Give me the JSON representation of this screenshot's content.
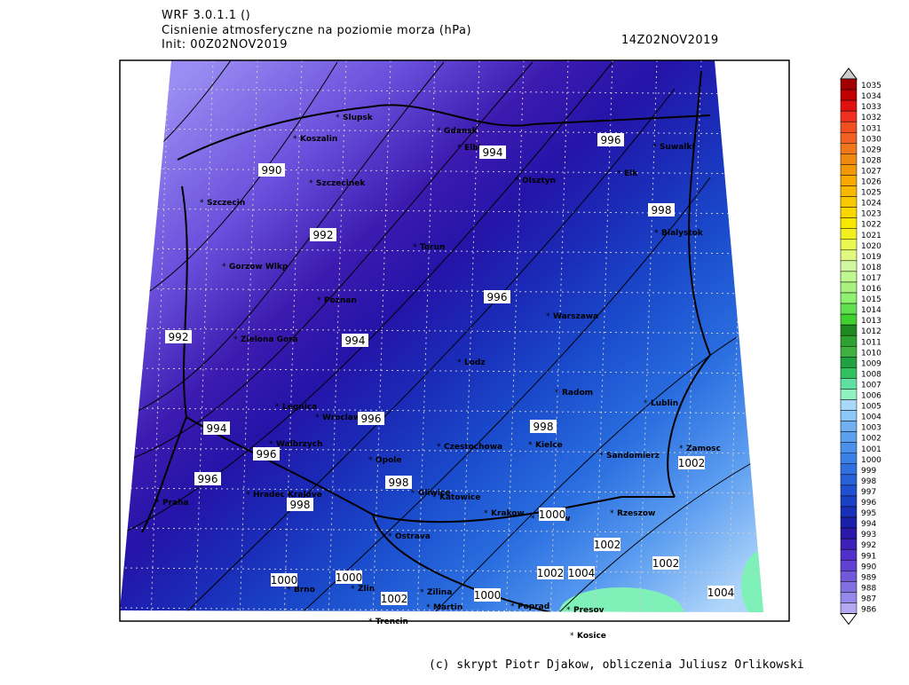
{
  "header": {
    "model": "WRF 3.0.1.1 ()",
    "title": "Cisnienie atmosferyczne na poziomie morza (hPa)",
    "init": "Init: 00Z02NOV2019",
    "valid": "14Z02NOV2019"
  },
  "cities": [
    "Slupsk",
    "Koszalin",
    "Gdansk",
    "Elblag",
    "Suwalki",
    "Szczecinek",
    "Olsztyn",
    "Elk",
    "Szczecin",
    "Bialystok",
    "Torun",
    "Gorzow Wlkp",
    "Poznan",
    "Warszawa",
    "Zielona Gora",
    "Lodz",
    "Radom",
    "Lublin",
    "Legnica",
    "Wroclaw",
    "Kielce",
    "Zamosc",
    "Walbrzych",
    "Czestochowa",
    "Opole",
    "Sandomierz",
    "Praha",
    "Hradec Kralove",
    "Gliwice",
    "Katowice",
    "Krakow",
    "Tarnow",
    "Rzeszow",
    "Ostrava",
    "Brno",
    "Zlin",
    "Zilina",
    "Martin",
    "Poprad",
    "Presov",
    "Trencin",
    "Kosice"
  ],
  "contour_labels": [
    "990",
    "992",
    "992",
    "994",
    "996",
    "998",
    "996",
    "994",
    "996",
    "998",
    "994",
    "996",
    "996",
    "998",
    "998",
    "1000",
    "1002",
    "1002",
    "1002",
    "1000",
    "1000",
    "1002",
    "1000",
    "1002",
    "1004",
    "1004"
  ],
  "colorbar": [
    "1035",
    "1034",
    "1033",
    "1032",
    "1031",
    "1030",
    "1029",
    "1028",
    "1027",
    "1026",
    "1025",
    "1024",
    "1023",
    "1022",
    "1021",
    "1020",
    "1019",
    "1018",
    "1017",
    "1016",
    "1015",
    "1014",
    "1013",
    "1012",
    "1011",
    "1010",
    "1009",
    "1008",
    "1007",
    "1006",
    "1005",
    "1004",
    "1003",
    "1002",
    "1001",
    "1000",
    "999",
    "998",
    "997",
    "996",
    "995",
    "994",
    "993",
    "992",
    "991",
    "990",
    "989",
    "988",
    "987",
    "986"
  ],
  "footer": "(c) skrypt Piotr Djakow, obliczenia Juliusz Orlikowski"
}
